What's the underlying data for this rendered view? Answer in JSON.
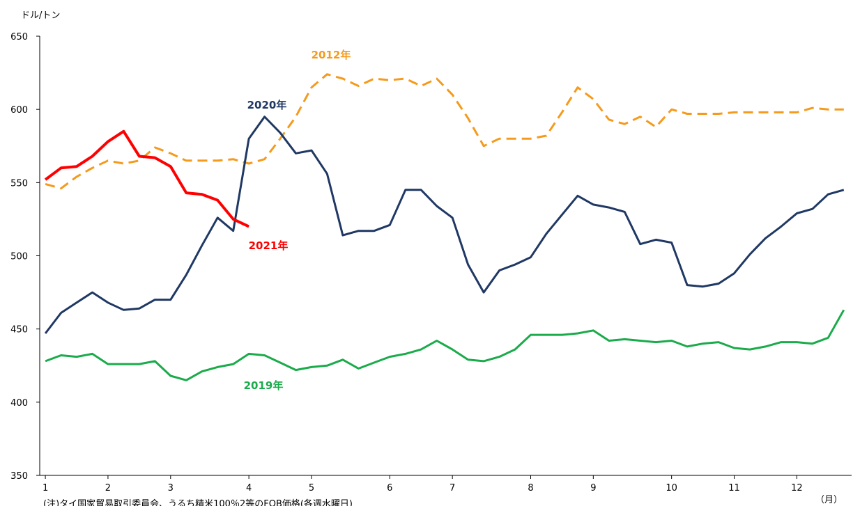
{
  "chart_data": {
    "type": "line",
    "y_label": "ドル/トン",
    "x_unit": "（月）",
    "note": "(注)タイ国家貿易取引委員会、うるち精米100％2等のFOB価格(各週水曜日)",
    "x": [
      1,
      2,
      3,
      4,
      5,
      6,
      7,
      8,
      9,
      10,
      11,
      12,
      13,
      14,
      15,
      16,
      17,
      18,
      19,
      20,
      21,
      22,
      23,
      24,
      25,
      26,
      27,
      28,
      29,
      30,
      31,
      32,
      33,
      34,
      35,
      36,
      37,
      38,
      39,
      40,
      41,
      42,
      43,
      44,
      45,
      46,
      47,
      48,
      49,
      50,
      51,
      52
    ],
    "xlim": [
      0.64,
      52.5
    ],
    "xticks": [
      {
        "value": 1,
        "label": "1"
      },
      {
        "value": 5,
        "label": "2"
      },
      {
        "value": 9,
        "label": "3"
      },
      {
        "value": 14,
        "label": "4"
      },
      {
        "value": 18,
        "label": "5"
      },
      {
        "value": 23,
        "label": "6"
      },
      {
        "value": 27,
        "label": "7"
      },
      {
        "value": 32,
        "label": "8"
      },
      {
        "value": 36,
        "label": "9"
      },
      {
        "value": 41,
        "label": "10"
      },
      {
        "value": 45,
        "label": "11"
      },
      {
        "value": 49,
        "label": "12"
      }
    ],
    "ylim": [
      350,
      650
    ],
    "yticks": [
      350,
      400,
      450,
      500,
      550,
      600,
      650
    ],
    "series": [
      {
        "name": "2012年",
        "color": "#f59a1b",
        "style": "dashed",
        "values": [
          549,
          546,
          554,
          560,
          565,
          563,
          565,
          574,
          570,
          565,
          565,
          565,
          566,
          563,
          566,
          580,
          595,
          615,
          624,
          621,
          616,
          621,
          620,
          621,
          616,
          621,
          610,
          594,
          575,
          580,
          580,
          580,
          582,
          598,
          615,
          607,
          593,
          590,
          595,
          588,
          600,
          597,
          597,
          597,
          598,
          598,
          598,
          598,
          598,
          601,
          600,
          600
        ]
      },
      {
        "name": "2020年",
        "color": "#1f3864",
        "style": "solid",
        "values": [
          447,
          461,
          468,
          475,
          468,
          463,
          464,
          470,
          470,
          487,
          507,
          526,
          517,
          580,
          595,
          584,
          570,
          572,
          556,
          514,
          517,
          517,
          521,
          545,
          545,
          534,
          526,
          494,
          475,
          490,
          494,
          499,
          515,
          528,
          541,
          535,
          533,
          530,
          508,
          511,
          509,
          480,
          479,
          481,
          488,
          501,
          512,
          520,
          529,
          532,
          542,
          545
        ]
      },
      {
        "name": "2021年",
        "color": "#ff0000",
        "style": "solid",
        "values": [
          552,
          560,
          561,
          568,
          578,
          585,
          568,
          567,
          561,
          543,
          542,
          538,
          525,
          520,
          null,
          null,
          null,
          null,
          null,
          null,
          null,
          null,
          null,
          null,
          null,
          null,
          null,
          null,
          null,
          null,
          null,
          null,
          null,
          null,
          null,
          null,
          null,
          null,
          null,
          null,
          null,
          null,
          null,
          null,
          null,
          null,
          null,
          null,
          null,
          null,
          null,
          null
        ]
      },
      {
        "name": "2019年",
        "color": "#1aab4b",
        "style": "solid",
        "values": [
          428,
          432,
          431,
          433,
          426,
          426,
          426,
          428,
          418,
          415,
          421,
          424,
          426,
          433,
          432,
          427,
          422,
          424,
          425,
          429,
          423,
          427,
          431,
          433,
          436,
          442,
          436,
          429,
          428,
          431,
          436,
          446,
          446,
          446,
          447,
          449,
          442,
          443,
          442,
          441,
          442,
          438,
          440,
          441,
          437,
          436,
          438,
          441,
          441,
          440,
          444,
          463
        ]
      }
    ]
  }
}
